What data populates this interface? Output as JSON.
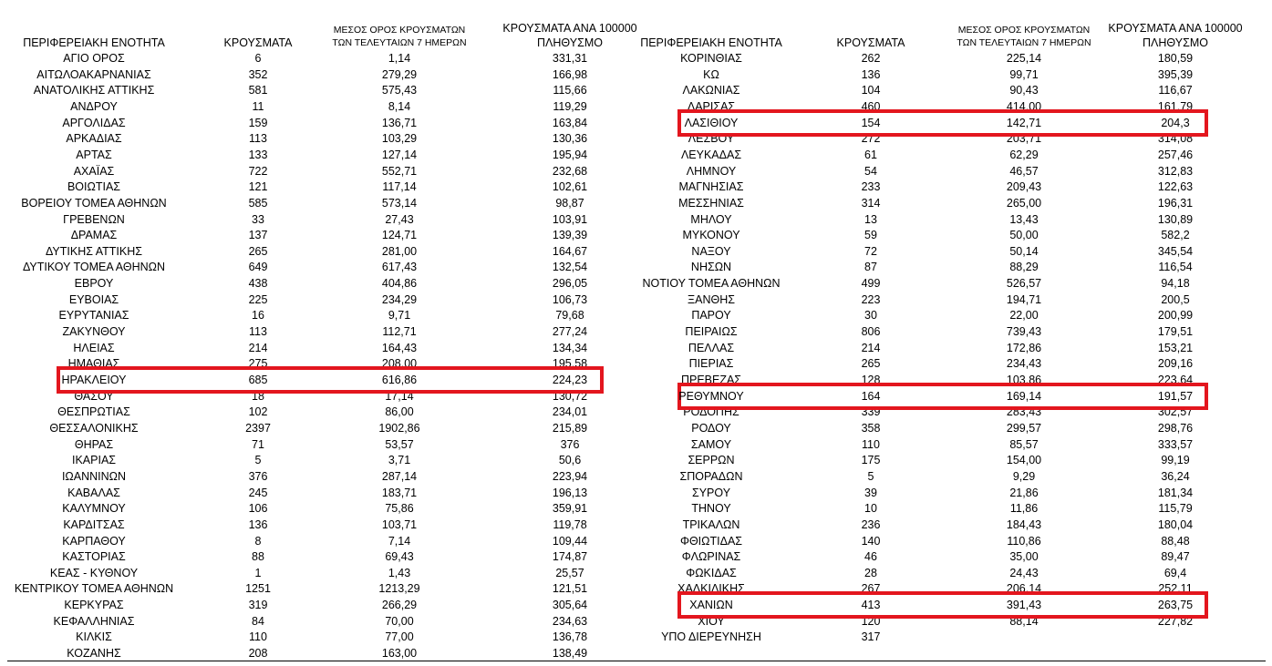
{
  "tables": [
    {
      "header": [
        [
          "ΠΕΡΙΦΕΡΕΙΑΚΗ ΕΝΟΤΗΤΑ"
        ],
        [
          "ΚΡΟΥΣΜΑΤΑ"
        ],
        [
          "ΜΕΣΟΣ ΟΡΟΣ ΚΡΟΥΣΜΑΤΩΝ",
          "ΤΩΝ ΤΕΛΕΥΤΑΙΩΝ 7 ΗΜΕΡΩΝ"
        ],
        [
          "ΚΡΟΥΣΜΑΤΑ ΑΝΑ 100000",
          "ΠΛΗΘΥΣΜΟ"
        ]
      ],
      "highlighted_rows": [
        20
      ],
      "rows": [
        [
          "ΑΓΙΟ ΟΡΟΣ",
          "6",
          "1,14",
          "331,31"
        ],
        [
          "ΑΙΤΩΛΟΑΚΑΡΝΑΝΙΑΣ",
          "352",
          "279,29",
          "166,98"
        ],
        [
          "ΑΝΑΤΟΛΙΚΗΣ ΑΤΤΙΚΗΣ",
          "581",
          "575,43",
          "115,66"
        ],
        [
          "ΑΝΔΡΟΥ",
          "11",
          "8,14",
          "119,29"
        ],
        [
          "ΑΡΓΟΛΙΔΑΣ",
          "159",
          "136,71",
          "163,84"
        ],
        [
          "ΑΡΚΑΔΙΑΣ",
          "113",
          "103,29",
          "130,36"
        ],
        [
          "ΑΡΤΑΣ",
          "133",
          "127,14",
          "195,94"
        ],
        [
          "ΑΧΑΪΑΣ",
          "722",
          "552,71",
          "232,68"
        ],
        [
          "ΒΟΙΩΤΙΑΣ",
          "121",
          "117,14",
          "102,61"
        ],
        [
          "ΒΟΡΕΙΟΥ ΤΟΜΕΑ ΑΘΗΝΩΝ",
          "585",
          "573,14",
          "98,87"
        ],
        [
          "ΓΡΕΒΕΝΩΝ",
          "33",
          "27,43",
          "103,91"
        ],
        [
          "ΔΡΑΜΑΣ",
          "137",
          "124,71",
          "139,39"
        ],
        [
          "ΔΥΤΙΚΗΣ ΑΤΤΙΚΗΣ",
          "265",
          "281,00",
          "164,67"
        ],
        [
          "ΔΥΤΙΚΟΥ ΤΟΜΕΑ ΑΘΗΝΩΝ",
          "649",
          "617,43",
          "132,54"
        ],
        [
          "ΕΒΡΟΥ",
          "438",
          "404,86",
          "296,05"
        ],
        [
          "ΕΥΒΟΙΑΣ",
          "225",
          "234,29",
          "106,73"
        ],
        [
          "ΕΥΡΥΤΑΝΙΑΣ",
          "16",
          "9,71",
          "79,68"
        ],
        [
          "ΖΑΚΥΝΘΟΥ",
          "113",
          "112,71",
          "277,24"
        ],
        [
          "ΗΛΕΙΑΣ",
          "214",
          "164,43",
          "134,34"
        ],
        [
          "ΗΜΑΘΙΑΣ",
          "275",
          "208,00",
          "195,58"
        ],
        [
          "ΗΡΑΚΛΕΙΟΥ",
          "685",
          "616,86",
          "224,23"
        ],
        [
          "ΘΑΣΟΥ",
          "18",
          "17,14",
          "130,72"
        ],
        [
          "ΘΕΣΠΡΩΤΙΑΣ",
          "102",
          "86,00",
          "234,01"
        ],
        [
          "ΘΕΣΣΑΛΟΝΙΚΗΣ",
          "2397",
          "1902,86",
          "215,89"
        ],
        [
          "ΘΗΡΑΣ",
          "71",
          "53,57",
          "376"
        ],
        [
          "ΙΚΑΡΙΑΣ",
          "5",
          "3,71",
          "50,6"
        ],
        [
          "ΙΩΑΝΝΙΝΩΝ",
          "376",
          "287,14",
          "223,94"
        ],
        [
          "ΚΑΒΑΛΑΣ",
          "245",
          "183,71",
          "196,13"
        ],
        [
          "ΚΑΛΥΜΝΟΥ",
          "106",
          "75,86",
          "359,91"
        ],
        [
          "ΚΑΡΔΙΤΣΑΣ",
          "136",
          "103,71",
          "119,78"
        ],
        [
          "ΚΑΡΠΑΘΟΥ",
          "8",
          "7,14",
          "109,44"
        ],
        [
          "ΚΑΣΤΟΡΙΑΣ",
          "88",
          "69,43",
          "174,87"
        ],
        [
          "ΚΕΑΣ - ΚΥΘΝΟΥ",
          "1",
          "1,43",
          "25,57"
        ],
        [
          "ΚΕΝΤΡΙΚΟΥ ΤΟΜΕΑ ΑΘΗΝΩΝ",
          "1251",
          "1213,29",
          "121,51"
        ],
        [
          "ΚΕΡΚΥΡΑΣ",
          "319",
          "266,29",
          "305,64"
        ],
        [
          "ΚΕΦΑΛΛΗΝΙΑΣ",
          "84",
          "70,00",
          "234,63"
        ],
        [
          "ΚΙΛΚΙΣ",
          "110",
          "77,00",
          "136,78"
        ],
        [
          "ΚΟΖΑΝΗΣ",
          "208",
          "163,00",
          "138,49"
        ]
      ]
    },
    {
      "header": [
        [
          "ΠΕΡΙΦΕΡΕΙΑΚΗ ΕΝΟΤΗΤΑ"
        ],
        [
          "ΚΡΟΥΣΜΑΤΑ"
        ],
        [
          "ΜΕΣΟΣ ΟΡΟΣ ΚΡΟΥΣΜΑΤΩΝ",
          "ΤΩΝ ΤΕΛΕΥΤΑΙΩΝ 7 ΗΜΕΡΩΝ"
        ],
        [
          "ΚΡΟΥΣΜΑΤΑ ΑΝΑ 100000",
          "ΠΛΗΘΥΣΜΟ"
        ]
      ],
      "highlighted_rows": [
        4,
        21,
        34
      ],
      "rows": [
        [
          "ΚΟΡΙΝΘΙΑΣ",
          "262",
          "225,14",
          "180,59"
        ],
        [
          "ΚΩ",
          "136",
          "99,71",
          "395,39"
        ],
        [
          "ΛΑΚΩΝΙΑΣ",
          "104",
          "90,43",
          "116,67"
        ],
        [
          "ΛΑΡΙΣΑΣ",
          "460",
          "414,00",
          "161,79"
        ],
        [
          "ΛΑΣΙΘΙΟΥ",
          "154",
          "142,71",
          "204,3"
        ],
        [
          "ΛΕΣΒΟΥ",
          "272",
          "203,71",
          "314,08"
        ],
        [
          "ΛΕΥΚΑΔΑΣ",
          "61",
          "62,29",
          "257,46"
        ],
        [
          "ΛΗΜΝΟΥ",
          "54",
          "46,57",
          "312,83"
        ],
        [
          "ΜΑΓΝΗΣΙΑΣ",
          "233",
          "209,43",
          "122,63"
        ],
        [
          "ΜΕΣΣΗΝΙΑΣ",
          "314",
          "265,00",
          "196,31"
        ],
        [
          "ΜΗΛΟΥ",
          "13",
          "13,43",
          "130,89"
        ],
        [
          "ΜΥΚΟΝΟΥ",
          "59",
          "50,00",
          "582,2"
        ],
        [
          "ΝΑΞΟΥ",
          "72",
          "50,14",
          "345,54"
        ],
        [
          "ΝΗΣΩΝ",
          "87",
          "88,29",
          "116,54"
        ],
        [
          "ΝΟΤΙΟΥ ΤΟΜΕΑ ΑΘΗΝΩΝ",
          "499",
          "526,57",
          "94,18"
        ],
        [
          "ΞΑΝΘΗΣ",
          "223",
          "194,71",
          "200,5"
        ],
        [
          "ΠΑΡΟΥ",
          "30",
          "22,00",
          "200,99"
        ],
        [
          "ΠΕΙΡΑΙΩΣ",
          "806",
          "739,43",
          "179,51"
        ],
        [
          "ΠΕΛΛΑΣ",
          "214",
          "172,86",
          "153,21"
        ],
        [
          "ΠΙΕΡΙΑΣ",
          "265",
          "234,43",
          "209,16"
        ],
        [
          "ΠΡΕΒΕΖΑΣ",
          "128",
          "103,86",
          "223,64"
        ],
        [
          "ΡΕΘΥΜΝΟΥ",
          "164",
          "169,14",
          "191,57"
        ],
        [
          "ΡΟΔΟΠΗΣ",
          "339",
          "283,43",
          "302,57"
        ],
        [
          "ΡΟΔΟΥ",
          "358",
          "299,57",
          "298,76"
        ],
        [
          "ΣΑΜΟΥ",
          "110",
          "85,57",
          "333,57"
        ],
        [
          "ΣΕΡΡΩΝ",
          "175",
          "154,00",
          "99,19"
        ],
        [
          "ΣΠΟΡΑΔΩΝ",
          "5",
          "9,29",
          "36,24"
        ],
        [
          "ΣΥΡΟΥ",
          "39",
          "21,86",
          "181,34"
        ],
        [
          "ΤΗΝΟΥ",
          "10",
          "11,86",
          "115,79"
        ],
        [
          "ΤΡΙΚΑΛΩΝ",
          "236",
          "184,43",
          "180,04"
        ],
        [
          "ΦΘΙΩΤΙΔΑΣ",
          "140",
          "110,86",
          "88,48"
        ],
        [
          "ΦΛΩΡΙΝΑΣ",
          "46",
          "35,00",
          "89,47"
        ],
        [
          "ΦΩΚΙΔΑΣ",
          "28",
          "24,43",
          "69,4"
        ],
        [
          "ΧΑΛΚΙΔΙΚΗΣ",
          "267",
          "206,14",
          "252,11"
        ],
        [
          "ΧΑΝΙΩΝ",
          "413",
          "391,43",
          "263,75"
        ],
        [
          "ΧΙΟΥ",
          "120",
          "88,14",
          "227,82"
        ],
        [
          "ΥΠΟ ΔΙΕΡΕΥΝΗΣΗ",
          "317"
        ]
      ]
    }
  ]
}
